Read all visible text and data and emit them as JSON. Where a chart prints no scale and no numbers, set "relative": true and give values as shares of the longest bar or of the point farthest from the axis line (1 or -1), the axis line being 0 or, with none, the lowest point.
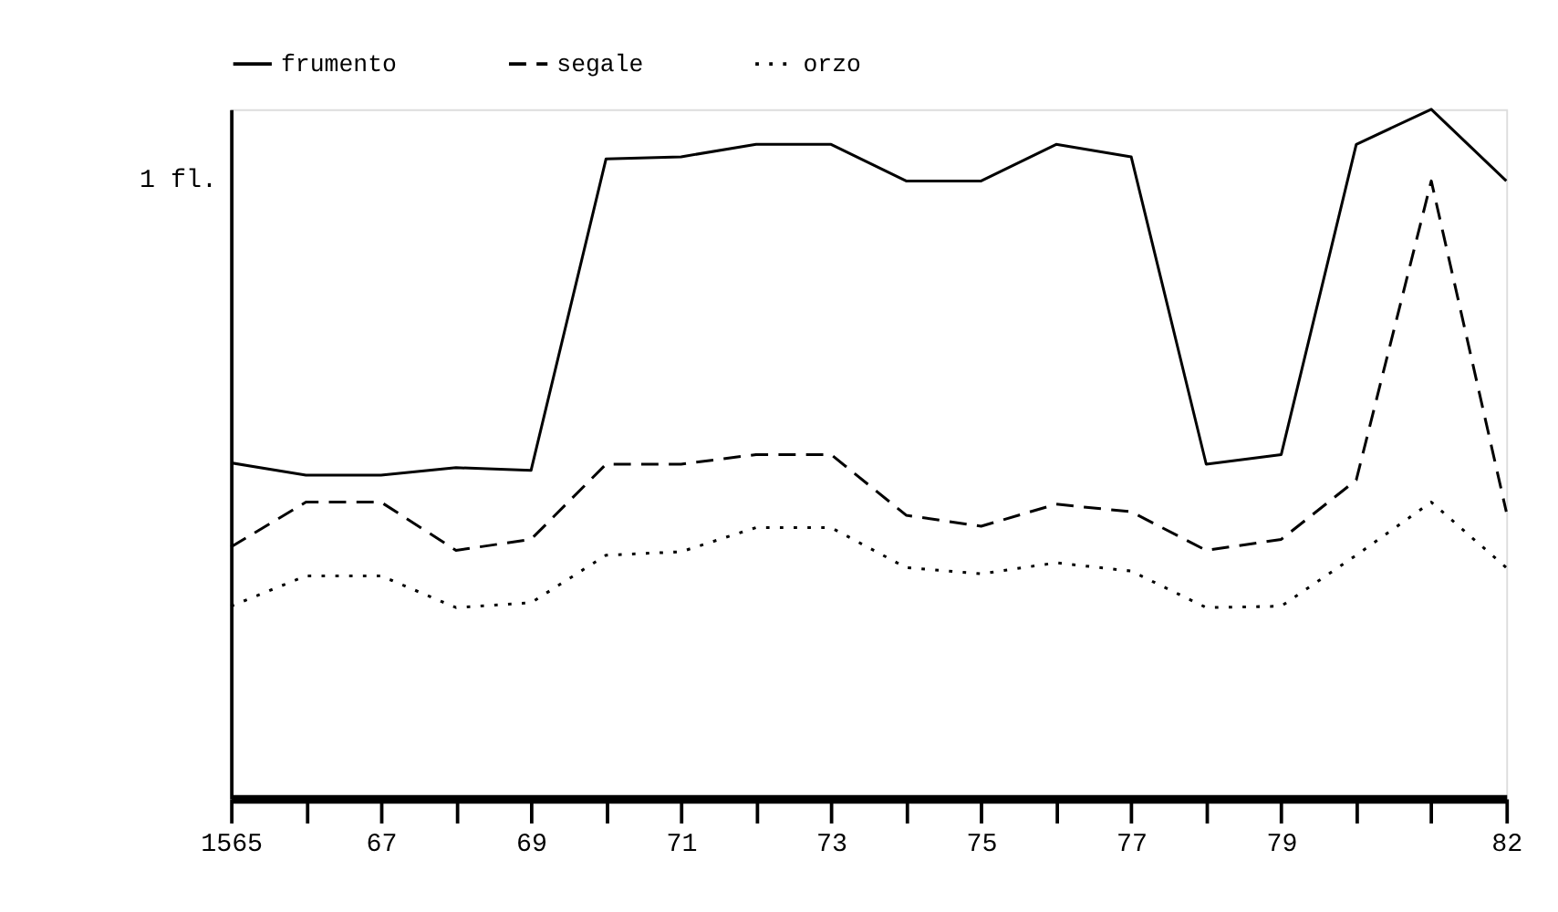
{
  "chart_data": {
    "type": "line",
    "relative": true,
    "legend": "top",
    "grid": false,
    "categories": [
      "1565",
      null,
      "67",
      null,
      "69",
      null,
      "71",
      null,
      "73",
      null,
      "75",
      null,
      "77",
      null,
      "79",
      null,
      null,
      "82"
    ],
    "series": [
      {
        "name": "frumento",
        "color": "#000000",
        "line_style": "solid",
        "values": [
          0.487,
          0.469,
          0.469,
          0.48,
          0.476,
          0.928,
          0.931,
          0.949,
          0.949,
          0.896,
          0.896,
          0.949,
          0.931,
          0.485,
          0.499,
          0.949,
          1,
          0.896
        ]
      },
      {
        "name": "segale",
        "color": "#000000",
        "line_style": "dashed",
        "values": [
          0.365,
          0.43,
          0.43,
          0.36,
          0.376,
          0.485,
          0.485,
          0.499,
          0.499,
          0.411,
          0.395,
          0.427,
          0.416,
          0.36,
          0.376,
          0.462,
          0.896,
          0.416
        ]
      },
      {
        "name": "orzo",
        "color": "#000000",
        "line_style": "dotted",
        "values": [
          0.279,
          0.323,
          0.323,
          0.277,
          0.284,
          0.353,
          0.358,
          0.393,
          0.393,
          0.335,
          0.326,
          0.342,
          0.33,
          0.277,
          0.279,
          0.353,
          0.43,
          0.335
        ]
      }
    ],
    "annotations": [
      "1 fl."
    ]
  }
}
